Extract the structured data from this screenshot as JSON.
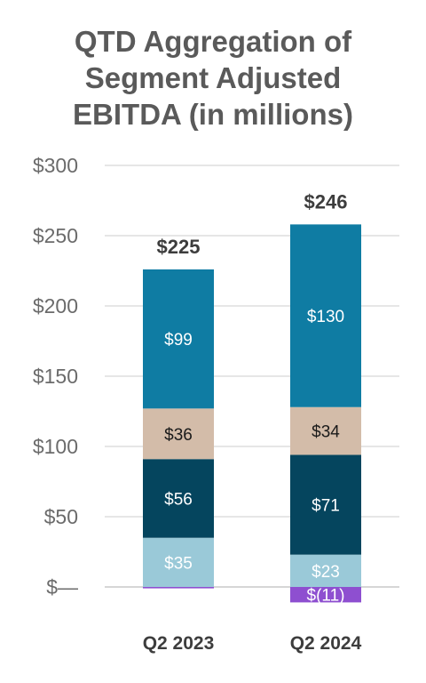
{
  "title_lines": [
    "QTD Aggregation of",
    "Segment Adjusted",
    "EBITDA (in millions)"
  ],
  "chart_data": {
    "type": "bar",
    "stacked": true,
    "title": "QTD Aggregation of Segment Adjusted EBITDA (in millions)",
    "categories": [
      "Q2 2023",
      "Q2 2024"
    ],
    "ylim": [
      0,
      300
    ],
    "yticks": [
      0,
      50,
      100,
      150,
      200,
      250,
      300
    ],
    "ytick_labels": [
      "$—",
      "$50",
      "$100",
      "$150",
      "$200",
      "$250",
      "$300"
    ],
    "grid": true,
    "series": [
      {
        "color": "#9ac9d8",
        "label_color": "#ffffff",
        "values": [
          35,
          23
        ],
        "labels": [
          "$35",
          "$23"
        ]
      },
      {
        "color": "#05455e",
        "label_color": "#ffffff",
        "values": [
          56,
          71
        ],
        "labels": [
          "$56",
          "$71"
        ]
      },
      {
        "color": "#d3bca9",
        "label_color": "#1a1a1a",
        "values": [
          36,
          34
        ],
        "labels": [
          "$36",
          "$34"
        ]
      },
      {
        "color": "#0f7ca3",
        "label_color": "#ffffff",
        "values": [
          99,
          130
        ],
        "labels": [
          "$99",
          "$130"
        ]
      },
      {
        "color": "#8e4fd0",
        "label_color": "#ffffff",
        "values": [
          -1,
          -11
        ],
        "labels": [
          "",
          "$(11)"
        ]
      }
    ],
    "totals": [
      225,
      246
    ],
    "total_labels": [
      "$225",
      "$246"
    ]
  }
}
